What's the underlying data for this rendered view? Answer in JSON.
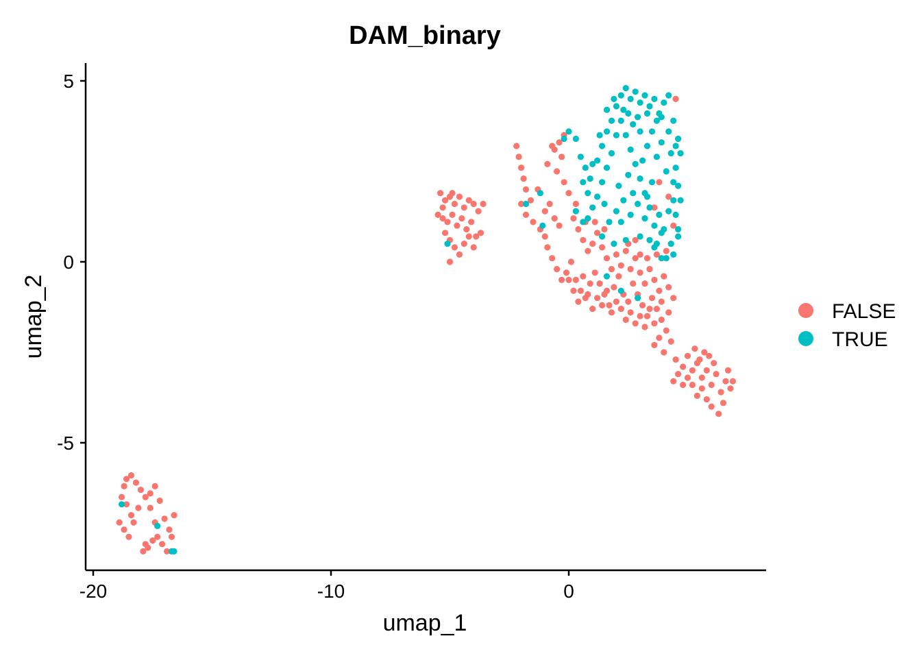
{
  "chart_data": {
    "type": "scatter",
    "title": "DAM_binary",
    "xlabel": "umap_1",
    "ylabel": "umap_2",
    "xlim": [
      -20.3,
      8.3
    ],
    "ylim": [
      -8.6,
      5.5
    ],
    "x_ticks": [
      -20,
      -10,
      0
    ],
    "x_tick_labels": [
      "-20",
      "-10",
      "0"
    ],
    "y_ticks": [
      5,
      0,
      -5
    ],
    "y_tick_labels": [
      "5",
      "0",
      "-5"
    ],
    "grid": false,
    "legend_position": "right",
    "series": [
      {
        "name": "FALSE",
        "color": "#F8766D",
        "points": [
          [
            -18.8,
            -6.5
          ],
          [
            -18.7,
            -6.2
          ],
          [
            -18.6,
            -6.0
          ],
          [
            -18.4,
            -5.9
          ],
          [
            -18.2,
            -6.1
          ],
          [
            -18.0,
            -6.3
          ],
          [
            -17.8,
            -6.5
          ],
          [
            -17.6,
            -6.4
          ],
          [
            -17.4,
            -6.2
          ],
          [
            -17.2,
            -6.6
          ],
          [
            -17.0,
            -7.1
          ],
          [
            -16.8,
            -7.4
          ],
          [
            -16.6,
            -7.0
          ],
          [
            -18.9,
            -7.2
          ],
          [
            -18.7,
            -7.4
          ],
          [
            -18.5,
            -7.6
          ],
          [
            -18.3,
            -7.2
          ],
          [
            -17.9,
            -8.0
          ],
          [
            -17.7,
            -7.9
          ],
          [
            -17.5,
            -7.7
          ],
          [
            -17.3,
            -7.6
          ],
          [
            -17.1,
            -7.8
          ],
          [
            -16.9,
            -8.0
          ],
          [
            -17.6,
            -6.8
          ],
          [
            -17.4,
            -7.2
          ],
          [
            -18.1,
            -6.8
          ],
          [
            -18.4,
            -7.0
          ],
          [
            -16.7,
            -7.6
          ],
          [
            -17.8,
            -7.8
          ],
          [
            -18.6,
            -6.7
          ],
          [
            -5.4,
            1.9
          ],
          [
            -5.2,
            1.7
          ],
          [
            -5.0,
            1.8
          ],
          [
            -4.8,
            1.6
          ],
          [
            -4.6,
            1.8
          ],
          [
            -4.4,
            1.5
          ],
          [
            -4.2,
            1.7
          ],
          [
            -4.0,
            1.6
          ],
          [
            -3.8,
            1.4
          ],
          [
            -3.6,
            1.6
          ],
          [
            -5.5,
            1.3
          ],
          [
            -5.3,
            1.2
          ],
          [
            -5.1,
            1.1
          ],
          [
            -4.9,
            1.3
          ],
          [
            -4.7,
            1.0
          ],
          [
            -4.5,
            1.2
          ],
          [
            -4.3,
            0.9
          ],
          [
            -4.1,
            1.1
          ],
          [
            -3.9,
            0.7
          ],
          [
            -5.2,
            0.8
          ],
          [
            -5.0,
            0.6
          ],
          [
            -4.8,
            0.4
          ],
          [
            -4.6,
            0.2
          ],
          [
            -5.0,
            0.0
          ],
          [
            -4.4,
            0.5
          ],
          [
            -4.2,
            0.7
          ],
          [
            -4.0,
            0.4
          ],
          [
            -3.7,
            0.8
          ],
          [
            -5.3,
            1.5
          ],
          [
            -4.9,
            1.9
          ],
          [
            -2.2,
            3.2
          ],
          [
            -2.1,
            2.9
          ],
          [
            -2.0,
            2.6
          ],
          [
            -1.9,
            2.3
          ],
          [
            -1.8,
            2.0
          ],
          [
            -2.0,
            1.6
          ],
          [
            -1.8,
            1.3
          ],
          [
            -1.5,
            1.1
          ],
          [
            -1.2,
            0.9
          ],
          [
            -1.0,
            0.7
          ],
          [
            -0.9,
            0.4
          ],
          [
            -0.7,
            0.1
          ],
          [
            -0.5,
            -0.2
          ],
          [
            -0.3,
            -0.5
          ],
          [
            -0.1,
            -0.3
          ],
          [
            0.1,
            0.0
          ],
          [
            0.3,
            -0.5
          ],
          [
            0.5,
            -0.8
          ],
          [
            0.7,
            -1.0
          ],
          [
            0.9,
            -0.6
          ],
          [
            1.1,
            -0.3
          ],
          [
            1.3,
            -0.6
          ],
          [
            1.5,
            -0.9
          ],
          [
            1.7,
            -1.2
          ],
          [
            1.9,
            -0.7
          ],
          [
            2.1,
            -0.4
          ],
          [
            2.3,
            -0.9
          ],
          [
            2.5,
            -1.1
          ],
          [
            2.7,
            -0.6
          ],
          [
            2.9,
            -0.9
          ],
          [
            3.1,
            -1.2
          ],
          [
            3.3,
            -1.5
          ],
          [
            3.5,
            -1.0
          ],
          [
            3.7,
            -1.3
          ],
          [
            3.9,
            -1.6
          ],
          [
            4.1,
            -1.9
          ],
          [
            3.8,
            -2.1
          ],
          [
            3.6,
            -2.3
          ],
          [
            4.0,
            -2.5
          ],
          [
            4.3,
            -2.2
          ],
          [
            4.5,
            -2.7
          ],
          [
            4.8,
            -2.9
          ],
          [
            5.0,
            -2.6
          ],
          [
            5.2,
            -3.0
          ],
          [
            5.4,
            -2.8
          ],
          [
            5.6,
            -3.2
          ],
          [
            5.8,
            -3.0
          ],
          [
            6.0,
            -3.4
          ],
          [
            6.2,
            -3.1
          ],
          [
            6.4,
            -3.6
          ],
          [
            6.6,
            -3.3
          ],
          [
            6.8,
            -3.5
          ],
          [
            6.5,
            -3.9
          ],
          [
            6.3,
            -4.2
          ],
          [
            6.0,
            -4.0
          ],
          [
            5.8,
            -3.8
          ],
          [
            5.6,
            -3.5
          ],
          [
            5.4,
            -3.7
          ],
          [
            5.2,
            -3.4
          ],
          [
            5.0,
            -3.2
          ],
          [
            4.8,
            -3.4
          ],
          [
            4.6,
            -3.1
          ],
          [
            4.4,
            -3.3
          ],
          [
            6.1,
            -2.8
          ],
          [
            5.9,
            -2.6
          ],
          [
            5.7,
            -2.5
          ],
          [
            5.5,
            -2.7
          ],
          [
            5.3,
            -2.4
          ],
          [
            6.7,
            -3.0
          ],
          [
            6.9,
            -3.3
          ],
          [
            -0.4,
            3.3
          ],
          [
            -0.2,
            3.5
          ],
          [
            -0.6,
            3.1
          ],
          [
            -0.3,
            2.9
          ],
          [
            -0.5,
            2.5
          ],
          [
            -0.2,
            2.2
          ],
          [
            0.0,
            1.9
          ],
          [
            -0.8,
            1.6
          ],
          [
            -1.0,
            1.4
          ],
          [
            -0.6,
            1.2
          ],
          [
            -0.4,
            1.0
          ],
          [
            0.2,
            1.2
          ],
          [
            0.4,
            0.9
          ],
          [
            0.6,
            0.6
          ],
          [
            0.8,
            0.3
          ],
          [
            1.0,
            0.5
          ],
          [
            1.2,
            0.8
          ],
          [
            1.4,
            0.4
          ],
          [
            1.6,
            0.1
          ],
          [
            1.8,
            -0.2
          ],
          [
            2.0,
            0.2
          ],
          [
            2.2,
            -0.1
          ],
          [
            2.4,
            0.3
          ],
          [
            2.6,
            -0.2
          ],
          [
            2.8,
            0.1
          ],
          [
            3.0,
            -0.3
          ],
          [
            3.2,
            -0.6
          ],
          [
            3.4,
            -0.2
          ],
          [
            3.6,
            -0.5
          ],
          [
            3.8,
            -0.8
          ],
          [
            4.0,
            -0.4
          ],
          [
            4.2,
            -0.7
          ],
          [
            4.4,
            -1.0
          ],
          [
            4.2,
            -1.4
          ],
          [
            3.9,
            -1.1
          ],
          [
            0.0,
            -0.5
          ],
          [
            0.2,
            -0.8
          ],
          [
            0.4,
            -1.1
          ],
          [
            0.6,
            -0.4
          ],
          [
            0.8,
            -0.9
          ],
          [
            1.0,
            -1.3
          ],
          [
            1.2,
            -1.0
          ],
          [
            1.4,
            -1.2
          ],
          [
            1.6,
            -0.8
          ],
          [
            1.8,
            -1.4
          ],
          [
            2.0,
            -1.1
          ],
          [
            2.2,
            -1.3
          ],
          [
            2.4,
            -1.6
          ],
          [
            2.6,
            -1.4
          ],
          [
            2.8,
            -1.7
          ],
          [
            3.0,
            -1.5
          ],
          [
            3.2,
            -1.8
          ],
          [
            3.4,
            -1.3
          ],
          [
            3.6,
            -1.7
          ],
          [
            2.5,
            0.5
          ],
          [
            2.8,
            0.6
          ],
          [
            3.0,
            0.2
          ],
          [
            3.3,
            0.1
          ],
          [
            1.5,
            0.9
          ],
          [
            1.1,
            1.1
          ],
          [
            0.7,
            1.1
          ],
          [
            3.7,
            0.2
          ],
          [
            4.1,
            0.3
          ],
          [
            4.5,
            4.5
          ],
          [
            3.8,
            2.2
          ],
          [
            4.2,
            1.8
          ],
          [
            3.6,
            1.5
          ],
          [
            4.4,
            1.0
          ],
          [
            0.3,
            1.6
          ],
          [
            -1.3,
            2.0
          ],
          [
            -1.6,
            1.7
          ],
          [
            -0.9,
            2.7
          ],
          [
            -0.7,
            3.2
          ]
        ]
      },
      {
        "name": "TRUE",
        "color": "#00BFC4",
        "points": [
          [
            -18.8,
            -6.7
          ],
          [
            -17.3,
            -7.3
          ],
          [
            -16.7,
            -8.0
          ],
          [
            -16.6,
            -8.0
          ],
          [
            -5.1,
            0.5
          ],
          [
            -1.8,
            1.6
          ],
          [
            -1.2,
            1.9
          ],
          [
            -1.1,
            1.0
          ],
          [
            0.3,
            1.4
          ],
          [
            0.6,
            1.1
          ],
          [
            0.8,
            1.2
          ],
          [
            1.4,
            0.7
          ],
          [
            1.9,
            0.5
          ],
          [
            2.4,
            0.6
          ],
          [
            1.6,
            -0.4
          ],
          [
            2.2,
            -0.8
          ],
          [
            2.9,
            -1.0
          ],
          [
            3.4,
            0.6
          ],
          [
            3.7,
            0.5
          ],
          [
            3.9,
            0.8
          ],
          [
            4.1,
            0.1
          ],
          [
            4.4,
            0.2
          ],
          [
            4.6,
            0.7
          ],
          [
            -0.2,
            3.4
          ],
          [
            0.0,
            3.6
          ],
          [
            0.3,
            3.4
          ],
          [
            0.5,
            2.9
          ],
          [
            0.7,
            2.6
          ],
          [
            0.9,
            2.3
          ],
          [
            1.2,
            2.8
          ],
          [
            1.4,
            3.2
          ],
          [
            1.6,
            3.6
          ],
          [
            1.8,
            3.9
          ],
          [
            2.0,
            4.3
          ],
          [
            2.2,
            4.6
          ],
          [
            2.4,
            4.8
          ],
          [
            2.6,
            4.5
          ],
          [
            2.8,
            4.7
          ],
          [
            3.0,
            4.4
          ],
          [
            3.2,
            4.6
          ],
          [
            3.4,
            4.3
          ],
          [
            3.6,
            4.5
          ],
          [
            3.8,
            4.1
          ],
          [
            4.0,
            4.4
          ],
          [
            4.2,
            4.6
          ],
          [
            4.4,
            3.9
          ],
          [
            4.6,
            3.4
          ],
          [
            4.7,
            3.0
          ],
          [
            4.5,
            2.6
          ],
          [
            4.6,
            2.1
          ],
          [
            4.7,
            1.7
          ],
          [
            4.5,
            1.3
          ],
          [
            4.6,
            0.9
          ],
          [
            4.3,
            0.5
          ],
          [
            4.0,
            0.9
          ],
          [
            3.8,
            1.3
          ],
          [
            3.6,
            1.0
          ],
          [
            3.4,
            1.5
          ],
          [
            3.2,
            1.9
          ],
          [
            3.0,
            2.3
          ],
          [
            2.8,
            2.7
          ],
          [
            2.6,
            3.1
          ],
          [
            2.4,
            3.5
          ],
          [
            2.2,
            3.9
          ],
          [
            2.0,
            3.5
          ],
          [
            1.8,
            3.0
          ],
          [
            1.6,
            2.6
          ],
          [
            1.4,
            2.2
          ],
          [
            1.2,
            1.8
          ],
          [
            1.0,
            1.5
          ],
          [
            0.8,
            1.9
          ],
          [
            0.6,
            2.2
          ],
          [
            2.1,
            2.1
          ],
          [
            2.3,
            1.7
          ],
          [
            2.5,
            2.4
          ],
          [
            2.7,
            1.9
          ],
          [
            2.9,
            1.6
          ],
          [
            3.1,
            2.8
          ],
          [
            3.3,
            3.2
          ],
          [
            3.5,
            3.6
          ],
          [
            3.7,
            2.9
          ],
          [
            3.9,
            3.3
          ],
          [
            4.1,
            2.5
          ],
          [
            4.3,
            3.0
          ],
          [
            4.4,
            2.2
          ],
          [
            3.5,
            2.2
          ],
          [
            3.3,
            1.8
          ],
          [
            3.0,
            3.6
          ],
          [
            2.7,
            3.8
          ],
          [
            2.5,
            4.1
          ],
          [
            3.9,
            4.0
          ],
          [
            4.2,
            3.6
          ],
          [
            4.5,
            3.2
          ],
          [
            1.5,
            1.6
          ],
          [
            1.7,
            1.1
          ],
          [
            2.0,
            1.4
          ],
          [
            2.2,
            1.1
          ],
          [
            2.6,
            1.3
          ],
          [
            3.0,
            0.7
          ],
          [
            3.2,
            1.2
          ],
          [
            3.6,
            0.4
          ],
          [
            3.9,
            0.1
          ],
          [
            4.2,
            1.4
          ],
          [
            4.4,
            1.7
          ],
          [
            1.0,
            2.7
          ],
          [
            1.3,
            3.5
          ],
          [
            1.6,
            4.2
          ],
          [
            1.9,
            4.5
          ],
          [
            2.3,
            4.2
          ],
          [
            2.9,
            4.0
          ],
          [
            3.3,
            4.1
          ],
          [
            3.7,
            3.9
          ]
        ]
      }
    ]
  }
}
